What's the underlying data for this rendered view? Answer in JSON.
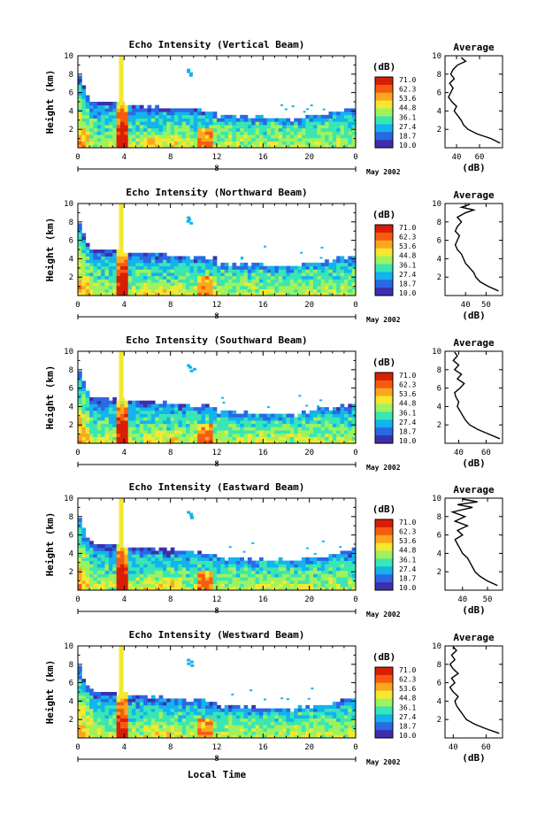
{
  "figure": {
    "xlabel": "Local Time",
    "date_label": "May 2002",
    "day_label": "8",
    "colorbar_unit": "(dB)",
    "colorbar_ticks": [
      "71.0",
      "62.3",
      "53.6",
      "44.8",
      "36.1",
      "27.4",
      "18.7",
      "10.0"
    ],
    "colorbar_colors": [
      "#d81e05",
      "#f65c10",
      "#fca61e",
      "#f4e830",
      "#9df25e",
      "#39e6b4",
      "#13b3ee",
      "#2a68e4",
      "#3b2fae"
    ],
    "avg_title": "Average",
    "avg_xlabel": "(dB)"
  },
  "chart_data": [
    {
      "type": "heatmap",
      "title": "Echo Intensity (Vertical Beam)",
      "ylabel": "Height (km)",
      "xlim": [
        0,
        24
      ],
      "ylim": [
        0,
        10
      ],
      "x_ticks": [
        "0",
        "4",
        "8",
        "12",
        "16",
        "20",
        "0"
      ],
      "y_ticks": [
        "2",
        "4",
        "6",
        "8",
        "10"
      ],
      "average": {
        "xlim": [
          30,
          80
        ],
        "x_ticks": [
          "40",
          "60"
        ],
        "y_ticks": [
          "2",
          "4",
          "6",
          "8",
          "10"
        ],
        "profile": [
          [
            78,
            0.5
          ],
          [
            70,
            1.0
          ],
          [
            58,
            1.5
          ],
          [
            50,
            2.0
          ],
          [
            46,
            2.5
          ],
          [
            44,
            3.0
          ],
          [
            41,
            3.5
          ],
          [
            38,
            4.0
          ],
          [
            40,
            4.5
          ],
          [
            36,
            5.0
          ],
          [
            33,
            5.5
          ],
          [
            35,
            6.0
          ],
          [
            37,
            6.5
          ],
          [
            34,
            7.0
          ],
          [
            38,
            7.5
          ],
          [
            35,
            8.0
          ],
          [
            37,
            8.5
          ],
          [
            41,
            9.0
          ],
          [
            48,
            9.4
          ],
          [
            44,
            9.8
          ]
        ]
      }
    },
    {
      "type": "heatmap",
      "title": "Echo Intensity (Northward Beam)",
      "ylabel": "Height (km)",
      "xlim": [
        0,
        24
      ],
      "ylim": [
        0,
        10
      ],
      "x_ticks": [
        "0",
        "4",
        "8",
        "12",
        "16",
        "20",
        "0"
      ],
      "y_ticks": [
        "2",
        "4",
        "6",
        "8",
        "10"
      ],
      "average": {
        "xlim": [
          30,
          58
        ],
        "x_ticks": [
          "40",
          "50"
        ],
        "y_ticks": [
          "2",
          "4",
          "6",
          "8",
          "10"
        ],
        "profile": [
          [
            56,
            0.5
          ],
          [
            51,
            1.0
          ],
          [
            47,
            1.5
          ],
          [
            45,
            2.0
          ],
          [
            44,
            2.5
          ],
          [
            42,
            3.0
          ],
          [
            40,
            3.5
          ],
          [
            39,
            4.0
          ],
          [
            38,
            4.5
          ],
          [
            36,
            5.0
          ],
          [
            35,
            5.5
          ],
          [
            36,
            6.0
          ],
          [
            37,
            6.5
          ],
          [
            35,
            7.0
          ],
          [
            36,
            7.5
          ],
          [
            38,
            8.0
          ],
          [
            36,
            8.5
          ],
          [
            40,
            9.0
          ],
          [
            44,
            9.3
          ],
          [
            38,
            9.6
          ],
          [
            42,
            9.9
          ]
        ]
      }
    },
    {
      "type": "heatmap",
      "title": "Echo Intensity (Southward Beam)",
      "ylabel": "Height (km)",
      "xlim": [
        0,
        24
      ],
      "ylim": [
        0,
        10
      ],
      "x_ticks": [
        "0",
        "4",
        "8",
        "12",
        "16",
        "20",
        "0"
      ],
      "y_ticks": [
        "2",
        "4",
        "6",
        "8",
        "10"
      ],
      "average": {
        "xlim": [
          30,
          72
        ],
        "x_ticks": [
          "40",
          "60"
        ],
        "y_ticks": [
          "2",
          "4",
          "6",
          "8",
          "10"
        ],
        "profile": [
          [
            70,
            0.5
          ],
          [
            62,
            1.0
          ],
          [
            54,
            1.5
          ],
          [
            48,
            2.0
          ],
          [
            45,
            2.5
          ],
          [
            43,
            3.0
          ],
          [
            41,
            3.5
          ],
          [
            39,
            4.0
          ],
          [
            40,
            4.5
          ],
          [
            38,
            5.0
          ],
          [
            37,
            5.5
          ],
          [
            41,
            6.0
          ],
          [
            44,
            6.5
          ],
          [
            39,
            7.0
          ],
          [
            42,
            7.5
          ],
          [
            37,
            8.0
          ],
          [
            40,
            8.5
          ],
          [
            36,
            9.0
          ],
          [
            39,
            9.5
          ],
          [
            37,
            9.9
          ]
        ]
      }
    },
    {
      "type": "heatmap",
      "title": "Echo Intensity (Eastward Beam)",
      "ylabel": "Height (km)",
      "xlim": [
        0,
        24
      ],
      "ylim": [
        0,
        10
      ],
      "x_ticks": [
        "0",
        "4",
        "8",
        "12",
        "16",
        "20",
        "0"
      ],
      "y_ticks": [
        "2",
        "4",
        "6",
        "8",
        "10"
      ],
      "average": {
        "xlim": [
          33,
          56
        ],
        "x_ticks": [
          "40",
          "50"
        ],
        "y_ticks": [
          "2",
          "4",
          "6",
          "8",
          "10"
        ],
        "profile": [
          [
            54,
            0.5
          ],
          [
            50,
            1.0
          ],
          [
            47,
            1.5
          ],
          [
            45,
            2.0
          ],
          [
            44,
            2.5
          ],
          [
            43,
            3.0
          ],
          [
            42,
            3.5
          ],
          [
            40,
            4.0
          ],
          [
            39,
            4.5
          ],
          [
            38,
            5.0
          ],
          [
            37,
            5.5
          ],
          [
            40,
            6.0
          ],
          [
            38,
            6.5
          ],
          [
            42,
            7.0
          ],
          [
            37,
            7.5
          ],
          [
            41,
            8.0
          ],
          [
            36,
            8.5
          ],
          [
            44,
            9.0
          ],
          [
            38,
            9.3
          ],
          [
            46,
            9.6
          ],
          [
            40,
            9.9
          ]
        ]
      }
    },
    {
      "type": "heatmap",
      "title": "Echo Intensity (Westward Beam)",
      "ylabel": "Height (km)",
      "xlim": [
        0,
        24
      ],
      "ylim": [
        0,
        10
      ],
      "x_ticks": [
        "0",
        "4",
        "8",
        "12",
        "16",
        "20",
        "0"
      ],
      "y_ticks": [
        "2",
        "4",
        "6",
        "8",
        "10"
      ],
      "average": {
        "xlim": [
          35,
          70
        ],
        "x_ticks": [
          "40",
          "60"
        ],
        "y_ticks": [
          "2",
          "4",
          "6",
          "8",
          "10"
        ],
        "profile": [
          [
            68,
            0.5
          ],
          [
            60,
            1.0
          ],
          [
            53,
            1.5
          ],
          [
            48,
            2.0
          ],
          [
            46,
            2.5
          ],
          [
            44,
            3.0
          ],
          [
            42,
            3.5
          ],
          [
            41,
            4.0
          ],
          [
            43,
            4.5
          ],
          [
            40,
            5.0
          ],
          [
            38,
            5.5
          ],
          [
            41,
            6.0
          ],
          [
            39,
            6.5
          ],
          [
            43,
            7.0
          ],
          [
            40,
            7.5
          ],
          [
            38,
            8.0
          ],
          [
            41,
            8.5
          ],
          [
            39,
            9.0
          ],
          [
            42,
            9.5
          ],
          [
            40,
            9.9
          ]
        ]
      }
    }
  ]
}
